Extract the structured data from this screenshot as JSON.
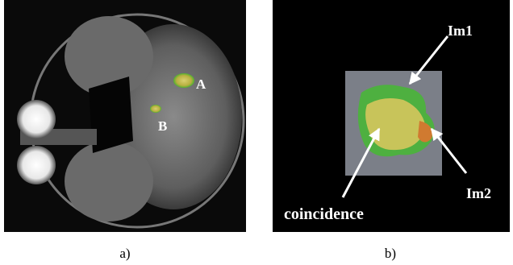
{
  "panel_a": {
    "labels": [
      "A",
      "B"
    ],
    "caption": "a)"
  },
  "panel_b": {
    "labels": [
      "Im1",
      "Im2",
      "coincidence"
    ],
    "caption": "b)"
  }
}
